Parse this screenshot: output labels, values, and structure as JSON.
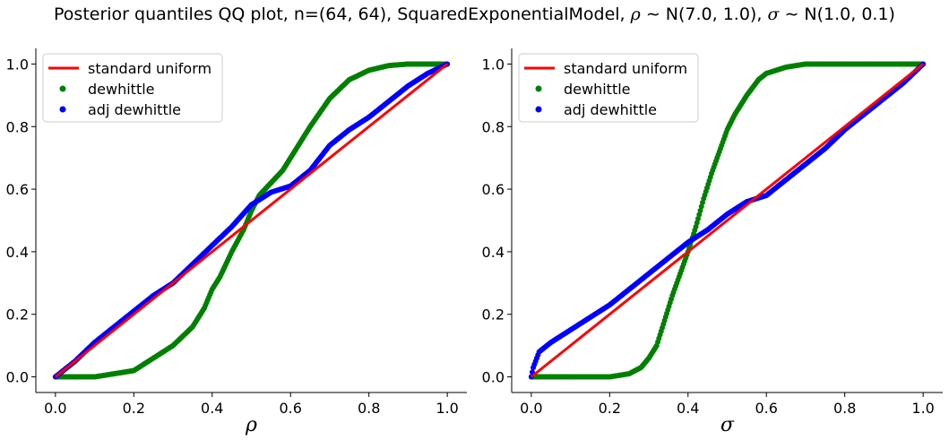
{
  "title_parts": {
    "prefix": "Posterior quantiles QQ plot, n=(64, 64), SquaredExponentialModel, ",
    "rho_sym": "ρ",
    "rho_prior": " ∼ N(7.0, 1.0), ",
    "sigma_sym": "σ",
    "sigma_prior": " ∼ N(1.0, 0.1)"
  },
  "colors": {
    "uniform": "#ff0000",
    "dewhittle": "#008000",
    "adj_dewhittle": "#0000ff"
  },
  "chart_data": [
    {
      "type": "scatter",
      "title": "",
      "xlabel": "ρ",
      "ylabel": "",
      "xlim": [
        -0.05,
        1.05
      ],
      "ylim": [
        -0.05,
        1.05
      ],
      "xticks": [
        "0.0",
        "0.2",
        "0.4",
        "0.6",
        "0.8",
        "1.0"
      ],
      "yticks": [
        "0.0",
        "0.2",
        "0.4",
        "0.6",
        "0.8",
        "1.0"
      ],
      "legend_position": "top-left",
      "series": [
        {
          "name": "standard uniform",
          "kind": "line",
          "color": "#ff0000",
          "x": [
            0,
            1
          ],
          "y": [
            0,
            1
          ]
        },
        {
          "name": "dewhittle",
          "kind": "points",
          "color": "#008000",
          "x": [
            0,
            0.1,
            0.2,
            0.25,
            0.3,
            0.35,
            0.38,
            0.4,
            0.42,
            0.45,
            0.48,
            0.5,
            0.52,
            0.55,
            0.58,
            0.6,
            0.62,
            0.65,
            0.7,
            0.75,
            0.8,
            0.85,
            0.9,
            1.0
          ],
          "y": [
            0,
            0.0,
            0.02,
            0.06,
            0.1,
            0.16,
            0.22,
            0.28,
            0.32,
            0.4,
            0.47,
            0.53,
            0.58,
            0.62,
            0.66,
            0.7,
            0.74,
            0.8,
            0.89,
            0.95,
            0.98,
            0.995,
            1.0,
            1.0
          ]
        },
        {
          "name": "adj dewhittle",
          "kind": "points",
          "color": "#0000ff",
          "x": [
            0,
            0.05,
            0.1,
            0.15,
            0.2,
            0.25,
            0.3,
            0.35,
            0.4,
            0.45,
            0.5,
            0.55,
            0.6,
            0.65,
            0.7,
            0.75,
            0.8,
            0.85,
            0.9,
            0.95,
            1.0
          ],
          "y": [
            0,
            0.05,
            0.11,
            0.16,
            0.21,
            0.26,
            0.3,
            0.36,
            0.42,
            0.48,
            0.55,
            0.59,
            0.61,
            0.66,
            0.74,
            0.79,
            0.83,
            0.88,
            0.93,
            0.97,
            1.0
          ]
        }
      ]
    },
    {
      "type": "scatter",
      "title": "",
      "xlabel": "σ",
      "ylabel": "",
      "xlim": [
        -0.05,
        1.05
      ],
      "ylim": [
        -0.05,
        1.05
      ],
      "xticks": [
        "0.0",
        "0.2",
        "0.4",
        "0.6",
        "0.8",
        "1.0"
      ],
      "yticks": [
        "0.0",
        "0.2",
        "0.4",
        "0.6",
        "0.8",
        "1.0"
      ],
      "legend_position": "top-left",
      "series": [
        {
          "name": "standard uniform",
          "kind": "line",
          "color": "#ff0000",
          "x": [
            0,
            1
          ],
          "y": [
            0,
            1
          ]
        },
        {
          "name": "dewhittle",
          "kind": "points",
          "color": "#008000",
          "x": [
            0,
            0.1,
            0.2,
            0.25,
            0.28,
            0.3,
            0.32,
            0.34,
            0.36,
            0.38,
            0.4,
            0.42,
            0.44,
            0.46,
            0.48,
            0.5,
            0.52,
            0.55,
            0.58,
            0.6,
            0.65,
            0.7,
            0.8,
            1.0
          ],
          "y": [
            0,
            0.0,
            0.0,
            0.01,
            0.03,
            0.06,
            0.1,
            0.18,
            0.26,
            0.33,
            0.4,
            0.48,
            0.57,
            0.65,
            0.72,
            0.79,
            0.84,
            0.9,
            0.95,
            0.97,
            0.99,
            1.0,
            1.0,
            1.0
          ]
        },
        {
          "name": "adj dewhittle",
          "kind": "points",
          "color": "#0000ff",
          "x": [
            0,
            0.005,
            0.02,
            0.05,
            0.1,
            0.15,
            0.2,
            0.25,
            0.3,
            0.35,
            0.4,
            0.45,
            0.5,
            0.55,
            0.6,
            0.65,
            0.7,
            0.75,
            0.8,
            0.85,
            0.9,
            0.95,
            1.0
          ],
          "y": [
            0,
            0.03,
            0.08,
            0.11,
            0.15,
            0.19,
            0.23,
            0.28,
            0.33,
            0.38,
            0.43,
            0.47,
            0.52,
            0.56,
            0.58,
            0.63,
            0.68,
            0.73,
            0.79,
            0.84,
            0.89,
            0.94,
            1.0
          ]
        }
      ]
    }
  ]
}
